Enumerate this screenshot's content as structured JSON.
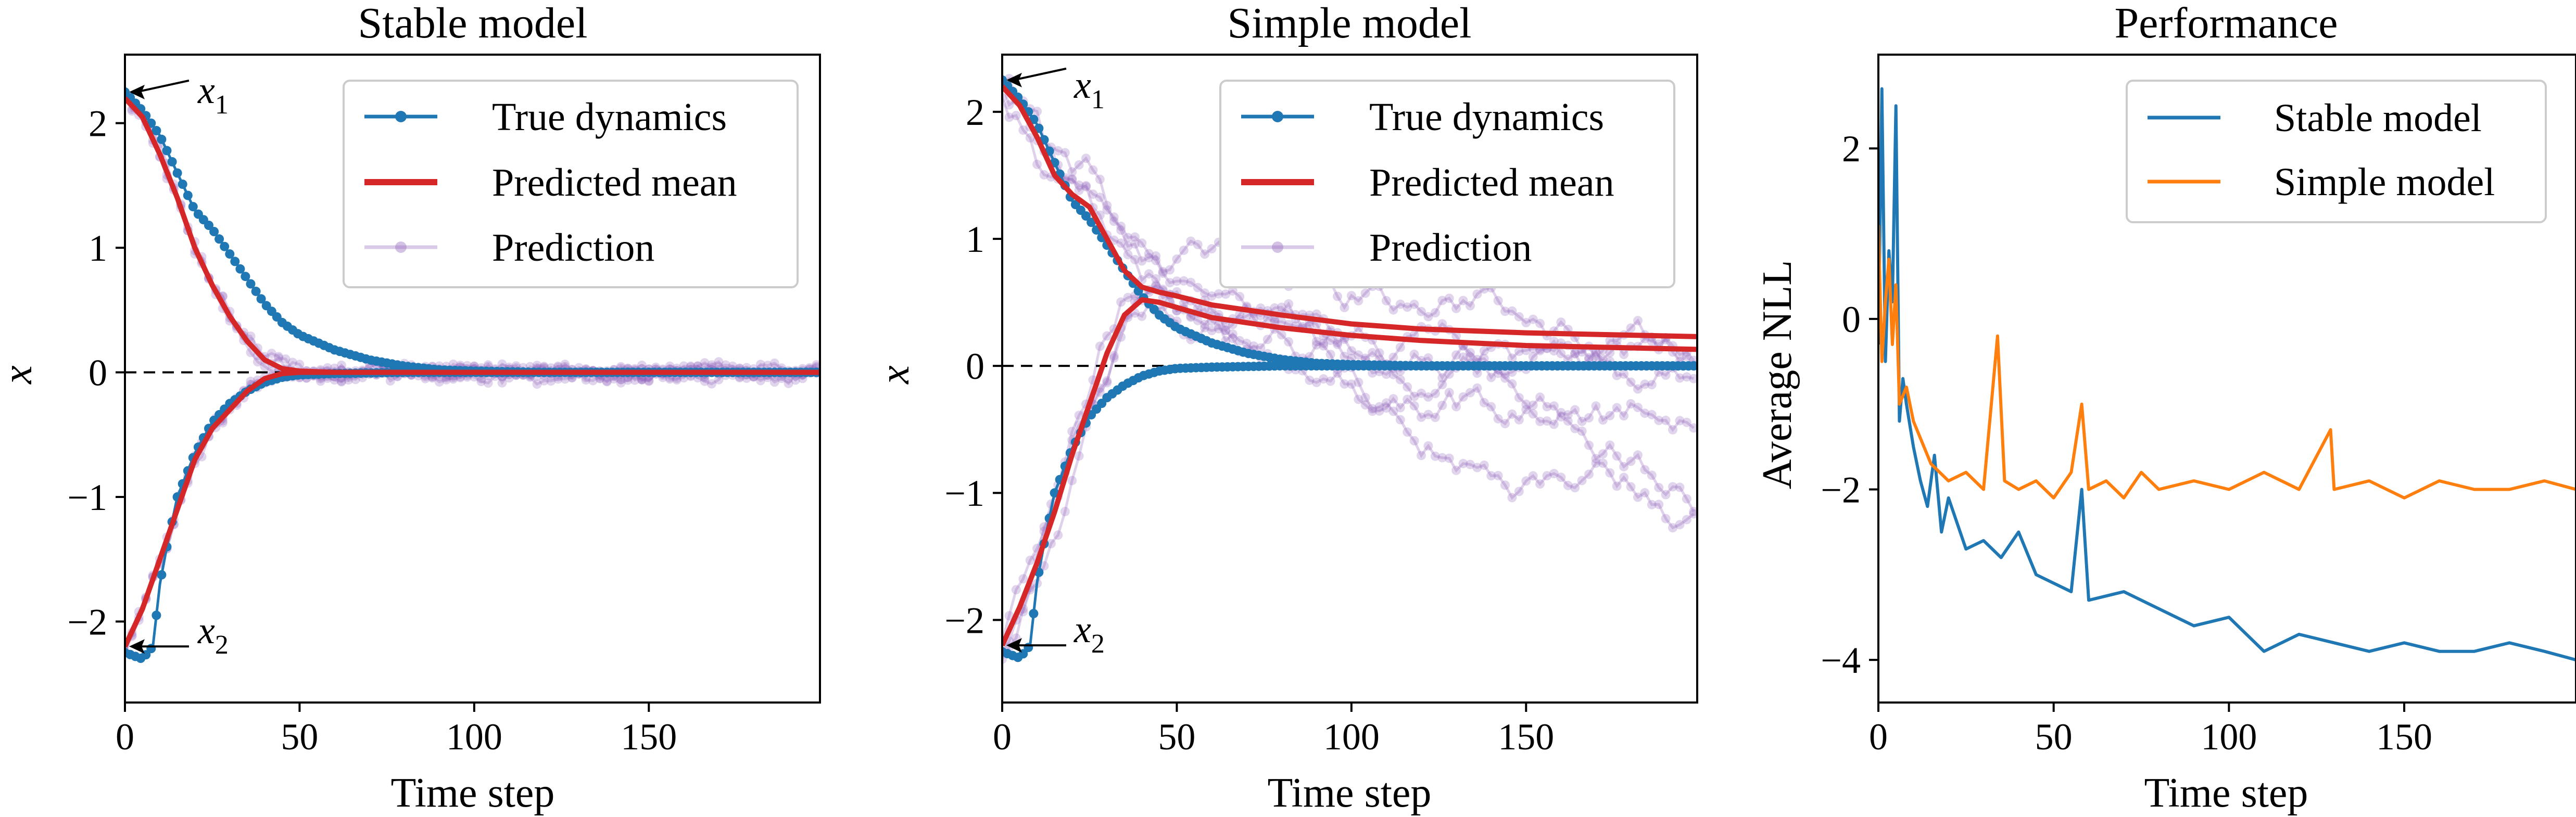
{
  "chart_data": [
    {
      "type": "line",
      "title": "Stable model",
      "xlabel": "Time step",
      "ylabel": "x",
      "xlim": [
        0,
        199
      ],
      "ylim": [
        -2.65,
        2.55
      ],
      "xticks": [
        0,
        50,
        100,
        150
      ],
      "yticks": [
        -2,
        -1,
        0,
        1,
        2
      ],
      "reference_line_y": 0,
      "legend": {
        "position": "top-right",
        "entries": [
          "True dynamics",
          "Predicted mean",
          "Prediction"
        ]
      },
      "annotations": [
        {
          "text": "x",
          "subscript": "1",
          "x": 0,
          "y": 2.25
        },
        {
          "text": "x",
          "subscript": "2",
          "x": 0,
          "y": -2.2
        }
      ],
      "colors": {
        "true": "#1f77b4",
        "mean": "#d62728",
        "prediction": "#9467bd"
      },
      "series": [
        {
          "name": "True dynamics",
          "trajectories": [
            {
              "x": [
                0,
                5,
                10,
                15,
                20,
                25,
                30,
                35,
                40,
                45,
                50,
                60,
                70,
                80,
                90,
                100,
                120,
                150,
                199
              ],
              "y": [
                2.25,
                2.1,
                1.9,
                1.6,
                1.3,
                1.15,
                0.95,
                0.75,
                0.55,
                0.4,
                0.3,
                0.18,
                0.1,
                0.05,
                0.02,
                0.01,
                0.0,
                0.0,
                0.0
              ]
            },
            {
              "x": [
                0,
                5,
                8,
                10,
                12,
                15,
                20,
                25,
                30,
                35,
                40,
                45,
                50,
                60,
                80,
                100,
                150,
                199
              ],
              "y": [
                -2.25,
                -2.3,
                -2.2,
                -1.7,
                -1.4,
                -1.0,
                -0.65,
                -0.4,
                -0.25,
                -0.15,
                -0.08,
                -0.04,
                -0.02,
                -0.01,
                0.0,
                0.0,
                0.0,
                0.0
              ]
            }
          ]
        },
        {
          "name": "Predicted mean",
          "trajectories": [
            {
              "x": [
                0,
                5,
                10,
                15,
                20,
                25,
                30,
                35,
                40,
                45,
                50,
                60,
                80,
                100,
                199
              ],
              "y": [
                2.2,
                2.05,
                1.75,
                1.4,
                1.0,
                0.7,
                0.45,
                0.25,
                0.1,
                0.03,
                0.01,
                0.0,
                0.0,
                0.0,
                0.0
              ]
            },
            {
              "x": [
                0,
                5,
                10,
                15,
                20,
                25,
                30,
                35,
                40,
                45,
                50,
                60,
                80,
                100,
                199
              ],
              "y": [
                -2.2,
                -1.9,
                -1.5,
                -1.1,
                -0.7,
                -0.45,
                -0.3,
                -0.15,
                -0.05,
                -0.01,
                0.0,
                0.0,
                0.0,
                0.0,
                0.0
              ]
            }
          ]
        }
      ]
    },
    {
      "type": "line",
      "title": "Simple model",
      "xlabel": "Time step",
      "ylabel": "x",
      "xlim": [
        0,
        199
      ],
      "ylim": [
        -2.65,
        2.45
      ],
      "xticks": [
        0,
        50,
        100,
        150
      ],
      "yticks": [
        -2,
        -1,
        0,
        1,
        2
      ],
      "reference_line_y": 0,
      "legend": {
        "position": "top-right",
        "entries": [
          "True dynamics",
          "Predicted mean",
          "Prediction"
        ]
      },
      "annotations": [
        {
          "text": "x",
          "subscript": "1",
          "x": 0,
          "y": 2.25
        },
        {
          "text": "x",
          "subscript": "2",
          "x": 0,
          "y": -2.2
        }
      ],
      "colors": {
        "true": "#1f77b4",
        "mean": "#d62728",
        "prediction": "#9467bd"
      },
      "series": [
        {
          "name": "True dynamics",
          "trajectories": [
            {
              "x": [
                0,
                5,
                10,
                15,
                20,
                25,
                30,
                35,
                40,
                45,
                50,
                60,
                70,
                80,
                90,
                100,
                120,
                150,
                199
              ],
              "y": [
                2.25,
                2.1,
                1.9,
                1.6,
                1.3,
                1.15,
                0.95,
                0.75,
                0.55,
                0.4,
                0.3,
                0.18,
                0.1,
                0.05,
                0.02,
                0.01,
                0.0,
                0.0,
                0.0
              ]
            },
            {
              "x": [
                0,
                5,
                8,
                10,
                12,
                15,
                20,
                25,
                30,
                35,
                40,
                45,
                50,
                60,
                80,
                100,
                150,
                199
              ],
              "y": [
                -2.25,
                -2.3,
                -2.2,
                -1.7,
                -1.4,
                -1.0,
                -0.65,
                -0.4,
                -0.25,
                -0.15,
                -0.08,
                -0.04,
                -0.02,
                -0.01,
                0.0,
                0.0,
                0.0,
                0.0
              ]
            }
          ]
        },
        {
          "name": "Predicted mean",
          "trajectories": [
            {
              "x": [
                0,
                5,
                10,
                15,
                20,
                25,
                30,
                35,
                40,
                45,
                50,
                60,
                80,
                100,
                120,
                150,
                199
              ],
              "y": [
                2.2,
                2.05,
                1.8,
                1.5,
                1.35,
                1.25,
                1.0,
                0.75,
                0.62,
                0.58,
                0.55,
                0.48,
                0.4,
                0.33,
                0.29,
                0.26,
                0.23
              ]
            },
            {
              "x": [
                0,
                5,
                10,
                15,
                20,
                25,
                30,
                35,
                40,
                45,
                50,
                60,
                80,
                100,
                120,
                150,
                199
              ],
              "y": [
                -2.2,
                -1.9,
                -1.55,
                -1.15,
                -0.7,
                -0.3,
                0.1,
                0.4,
                0.52,
                0.5,
                0.46,
                0.38,
                0.3,
                0.24,
                0.2,
                0.16,
                0.13
              ]
            }
          ]
        }
      ]
    },
    {
      "type": "line",
      "title": "Performance",
      "xlabel": "Time step",
      "ylabel": "Average NLL",
      "xlim": [
        0,
        199
      ],
      "ylim": [
        -4.5,
        3.1
      ],
      "xticks": [
        0,
        50,
        100,
        150
      ],
      "yticks": [
        -4,
        -2,
        0,
        2
      ],
      "legend": {
        "position": "top-right",
        "entries": [
          "Stable model",
          "Simple model"
        ]
      },
      "colors": {
        "Stable model": "#1f77b4",
        "Simple model": "#ff7f0e"
      },
      "series": [
        {
          "name": "Stable model",
          "x": [
            0,
            1,
            2,
            3,
            4,
            5,
            6,
            7,
            8,
            10,
            12,
            14,
            16,
            18,
            20,
            25,
            30,
            35,
            40,
            45,
            50,
            55,
            58,
            60,
            70,
            80,
            90,
            100,
            110,
            120,
            130,
            140,
            150,
            160,
            170,
            180,
            190,
            199
          ],
          "y": [
            -0.3,
            2.7,
            -0.5,
            0.8,
            0.2,
            2.5,
            -1.2,
            -0.7,
            -1.0,
            -1.5,
            -1.9,
            -2.2,
            -1.6,
            -2.5,
            -2.1,
            -2.7,
            -2.6,
            -2.8,
            -2.5,
            -3.0,
            -3.1,
            -3.2,
            -2.0,
            -3.3,
            -3.2,
            -3.4,
            -3.6,
            -3.5,
            -3.9,
            -3.7,
            -3.8,
            -3.9,
            -3.8,
            -3.9,
            -3.9,
            -3.8,
            -3.9,
            -4.0
          ]
        },
        {
          "name": "Simple model",
          "x": [
            0,
            1,
            2,
            3,
            4,
            5,
            6,
            8,
            10,
            12,
            15,
            20,
            25,
            30,
            34,
            36,
            40,
            45,
            50,
            55,
            58,
            60,
            65,
            70,
            75,
            80,
            90,
            100,
            110,
            120,
            129,
            130,
            140,
            150,
            160,
            170,
            180,
            190,
            199
          ],
          "y": [
            1.1,
            -0.5,
            0.2,
            0.7,
            -0.3,
            0.4,
            -1.0,
            -0.8,
            -1.2,
            -1.4,
            -1.7,
            -1.9,
            -1.8,
            -2.0,
            -0.2,
            -1.9,
            -2.0,
            -1.9,
            -2.1,
            -1.8,
            -1.0,
            -2.0,
            -1.9,
            -2.1,
            -1.8,
            -2.0,
            -1.9,
            -2.0,
            -1.8,
            -2.0,
            -1.3,
            -2.0,
            -1.9,
            -2.1,
            -1.9,
            -2.0,
            -2.0,
            -1.9,
            -2.0
          ]
        }
      ]
    }
  ]
}
